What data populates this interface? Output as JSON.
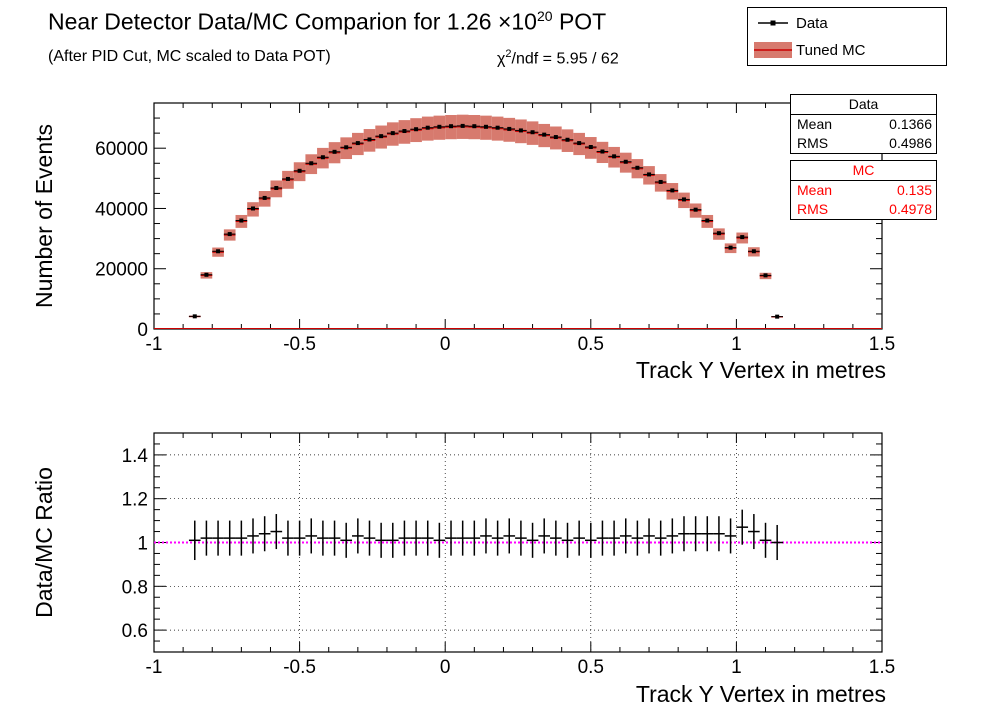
{
  "header": {
    "title_main": "Near Detector Data/MC Comparion for 1.26 ×10",
    "title_exp": "20",
    "title_tail": " POT",
    "subtitle": "(After PID Cut, MC scaled to Data POT)",
    "chi_prefix": "χ",
    "chi_exp": "2",
    "chi_rest": "/ndf = 5.95 / 62"
  },
  "legend": {
    "data_label": "Data",
    "mc_label": "Tuned MC"
  },
  "stats_data": {
    "title": "Data",
    "mean_label": "Mean",
    "mean_value": "0.1366",
    "rms_label": "RMS",
    "rms_value": "0.4986"
  },
  "stats_mc": {
    "title": "MC",
    "mean_label": "Mean",
    "mean_value": "0.135",
    "rms_label": "RMS",
    "rms_value": "0.4978"
  },
  "colors": {
    "data": "#000000",
    "mc_band": "#d77a6e",
    "mc_line": "#cc0000",
    "ratio_line": "#ff00ff",
    "stats_mc_text": "#ff0000"
  },
  "chart_data": [
    {
      "type": "bar",
      "title": "",
      "xlabel": "Track Y Vertex in metres",
      "ylabel": "Number of Events",
      "xlim": [
        -1,
        1.5
      ],
      "ylim": [
        0,
        75000
      ],
      "x_ticks": [
        "-1",
        "-0.5",
        "0",
        "0.5",
        "1",
        "1.5"
      ],
      "y_ticks": [
        "0",
        "20000",
        "40000",
        "60000"
      ],
      "grid": false,
      "bin_width": 0.04,
      "series": [
        {
          "name": "Data",
          "x": [
            -0.86,
            -0.82,
            -0.78,
            -0.74,
            -0.7,
            -0.66,
            -0.62,
            -0.58,
            -0.54,
            -0.5,
            -0.46,
            -0.42,
            -0.38,
            -0.34,
            -0.3,
            -0.26,
            -0.22,
            -0.18,
            -0.14,
            -0.1,
            -0.06,
            -0.02,
            0.02,
            0.06,
            0.1,
            0.14,
            0.18,
            0.22,
            0.26,
            0.3,
            0.34,
            0.38,
            0.42,
            0.46,
            0.5,
            0.54,
            0.58,
            0.62,
            0.66,
            0.7,
            0.74,
            0.78,
            0.82,
            0.86,
            0.9,
            0.94,
            0.98,
            1.02,
            1.06,
            1.1,
            1.14
          ],
          "values": [
            4200,
            18000,
            25800,
            31500,
            36000,
            40000,
            43500,
            46800,
            49800,
            52500,
            55000,
            57000,
            58800,
            60300,
            61700,
            62900,
            64000,
            65000,
            65700,
            66300,
            66800,
            67100,
            67300,
            67400,
            67300,
            67100,
            66800,
            66400,
            65900,
            65300,
            64500,
            63700,
            62800,
            61700,
            60400,
            58900,
            57300,
            55500,
            53500,
            51300,
            48800,
            46000,
            43000,
            39600,
            36000,
            31800,
            27000,
            30500,
            25800,
            17800,
            4100
          ]
        },
        {
          "name": "Tuned MC",
          "x": [
            -0.86,
            -0.82,
            -0.78,
            -0.74,
            -0.7,
            -0.66,
            -0.62,
            -0.58,
            -0.54,
            -0.5,
            -0.46,
            -0.42,
            -0.38,
            -0.34,
            -0.3,
            -0.26,
            -0.22,
            -0.18,
            -0.14,
            -0.1,
            -0.06,
            -0.02,
            0.02,
            0.06,
            0.1,
            0.14,
            0.18,
            0.22,
            0.26,
            0.3,
            0.34,
            0.38,
            0.42,
            0.46,
            0.5,
            0.54,
            0.58,
            0.62,
            0.66,
            0.7,
            0.74,
            0.78,
            0.82,
            0.86,
            0.9,
            0.94,
            0.98,
            1.02,
            1.06,
            1.1,
            1.14
          ],
          "values": [
            4150,
            17800,
            25500,
            31200,
            35700,
            39700,
            43200,
            46500,
            49500,
            52200,
            54700,
            56700,
            58500,
            60000,
            61400,
            62600,
            63700,
            64700,
            65400,
            66000,
            66500,
            66800,
            67000,
            67100,
            67000,
            66800,
            66500,
            66100,
            65600,
            65000,
            64200,
            63400,
            62500,
            61400,
            60100,
            58600,
            57000,
            55200,
            53200,
            51000,
            48500,
            45700,
            42700,
            39300,
            35700,
            31500,
            26800,
            30200,
            25600,
            17600,
            4050
          ],
          "band_rel": 0.06
        }
      ]
    },
    {
      "type": "scatter",
      "title": "",
      "xlabel": "Track Y Vertex in metres",
      "ylabel": "Data/MC Ratio",
      "xlim": [
        -1,
        1.5
      ],
      "ylim": [
        0.5,
        1.5
      ],
      "x_ticks": [
        "-1",
        "-0.5",
        "0",
        "0.5",
        "1",
        "1.5"
      ],
      "y_ticks": [
        "0.6",
        "0.8",
        "1",
        "1.2",
        "1.4"
      ],
      "grid": true,
      "reference_line": 1.0,
      "series": [
        {
          "name": "Data/MC",
          "x": [
            -0.86,
            -0.82,
            -0.78,
            -0.74,
            -0.7,
            -0.66,
            -0.62,
            -0.58,
            -0.54,
            -0.5,
            -0.46,
            -0.42,
            -0.38,
            -0.34,
            -0.3,
            -0.26,
            -0.22,
            -0.18,
            -0.14,
            -0.1,
            -0.06,
            -0.02,
            0.02,
            0.06,
            0.1,
            0.14,
            0.18,
            0.22,
            0.26,
            0.3,
            0.34,
            0.38,
            0.42,
            0.46,
            0.5,
            0.54,
            0.58,
            0.62,
            0.66,
            0.7,
            0.74,
            0.78,
            0.82,
            0.86,
            0.9,
            0.94,
            0.98,
            1.02,
            1.06,
            1.1,
            1.14
          ],
          "values": [
            1.01,
            1.02,
            1.02,
            1.02,
            1.02,
            1.03,
            1.04,
            1.05,
            1.02,
            1.02,
            1.03,
            1.02,
            1.02,
            1.01,
            1.03,
            1.02,
            1.01,
            1.01,
            1.02,
            1.02,
            1.02,
            1.01,
            1.02,
            1.02,
            1.02,
            1.03,
            1.02,
            1.03,
            1.02,
            1.01,
            1.03,
            1.02,
            1.01,
            1.02,
            1.01,
            1.02,
            1.02,
            1.03,
            1.02,
            1.03,
            1.02,
            1.03,
            1.04,
            1.04,
            1.04,
            1.04,
            1.03,
            1.07,
            1.05,
            1.01,
            1.0
          ],
          "errors": [
            0.09,
            0.08,
            0.08,
            0.08,
            0.08,
            0.08,
            0.08,
            0.08,
            0.08,
            0.08,
            0.08,
            0.08,
            0.08,
            0.08,
            0.08,
            0.08,
            0.08,
            0.08,
            0.08,
            0.08,
            0.08,
            0.08,
            0.08,
            0.08,
            0.08,
            0.08,
            0.08,
            0.08,
            0.08,
            0.08,
            0.08,
            0.08,
            0.08,
            0.08,
            0.08,
            0.08,
            0.08,
            0.08,
            0.08,
            0.08,
            0.08,
            0.08,
            0.08,
            0.08,
            0.08,
            0.08,
            0.08,
            0.08,
            0.08,
            0.08,
            0.08
          ]
        }
      ]
    }
  ]
}
